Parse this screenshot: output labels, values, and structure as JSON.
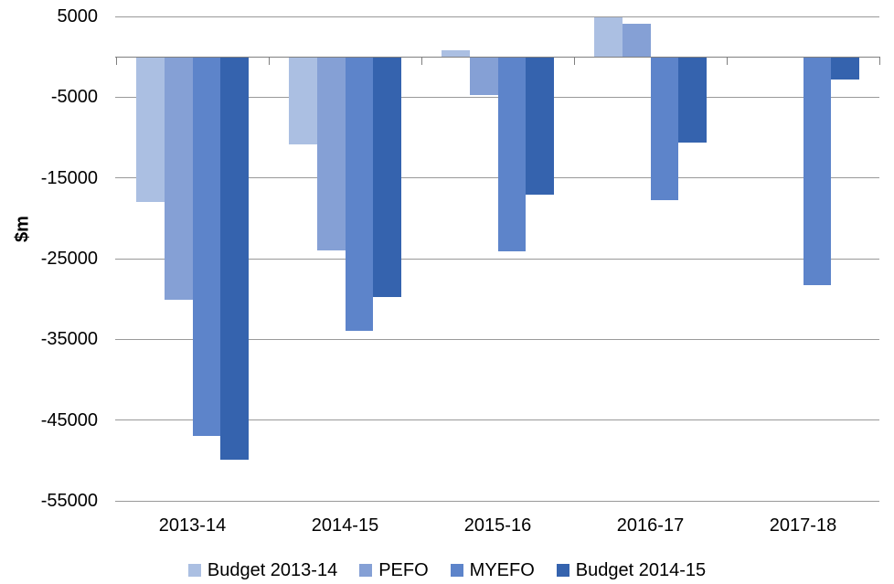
{
  "chart_data": {
    "type": "bar",
    "title": "",
    "ylabel": "$m",
    "categories": [
      "2013-14",
      "2014-15",
      "2015-16",
      "2016-17",
      "2017-18"
    ],
    "series": [
      {
        "name": "Budget 2013-14",
        "color": "#abbfe2",
        "values": [
          -18000,
          -10900,
          800,
          4900,
          null
        ]
      },
      {
        "name": "PEFO",
        "color": "#85a0d5",
        "values": [
          -30100,
          -24000,
          -4700,
          4100,
          null
        ]
      },
      {
        "name": "MYEFO",
        "color": "#5d84ca",
        "values": [
          -47000,
          -33900,
          -24100,
          -17700,
          -28300
        ]
      },
      {
        "name": "Budget 2014-15",
        "color": "#3563ae",
        "values": [
          -49900,
          -29800,
          -17100,
          -10600,
          -2800
        ]
      }
    ],
    "yticks": [
      5000,
      -5000,
      -15000,
      -25000,
      -35000,
      -45000,
      -55000
    ],
    "ylim": [
      -55000,
      5000
    ],
    "grid": true,
    "legend_position": "bottom",
    "colors": {
      "gridline": "#999999",
      "axis": "#7f7f7f",
      "text": "#000000",
      "background": "#ffffff"
    }
  }
}
